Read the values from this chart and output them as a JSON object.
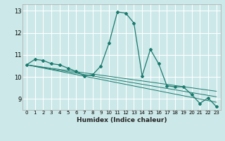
{
  "xlabel": "Humidex (Indice chaleur)",
  "ylabel": "",
  "bg_color": "#cce8e8",
  "grid_color": "#ffffff",
  "line_color": "#1a7a6e",
  "xlim": [
    -0.5,
    23.5
  ],
  "ylim": [
    8.5,
    13.3
  ],
  "yticks": [
    9,
    10,
    11,
    12,
    13
  ],
  "xticks": [
    0,
    1,
    2,
    3,
    4,
    5,
    6,
    7,
    8,
    9,
    10,
    11,
    12,
    13,
    14,
    15,
    16,
    17,
    18,
    19,
    20,
    21,
    22,
    23
  ],
  "series1_x": [
    0,
    1,
    2,
    3,
    4,
    5,
    6,
    7,
    8,
    9,
    10,
    11,
    12,
    13,
    14,
    15,
    16,
    17,
    18,
    19,
    20,
    21,
    22,
    23
  ],
  "series1_y": [
    10.55,
    10.8,
    10.75,
    10.6,
    10.55,
    10.4,
    10.25,
    10.05,
    10.1,
    10.5,
    11.55,
    12.95,
    12.9,
    12.45,
    10.05,
    11.25,
    10.6,
    9.6,
    9.55,
    9.55,
    9.2,
    8.8,
    9.05,
    8.65
  ],
  "series2_x": [
    0,
    23
  ],
  "series2_y": [
    10.55,
    9.35
  ],
  "series3_x": [
    0,
    23
  ],
  "series3_y": [
    10.55,
    9.1
  ],
  "series4_x": [
    0,
    23
  ],
  "series4_y": [
    10.55,
    8.85
  ]
}
